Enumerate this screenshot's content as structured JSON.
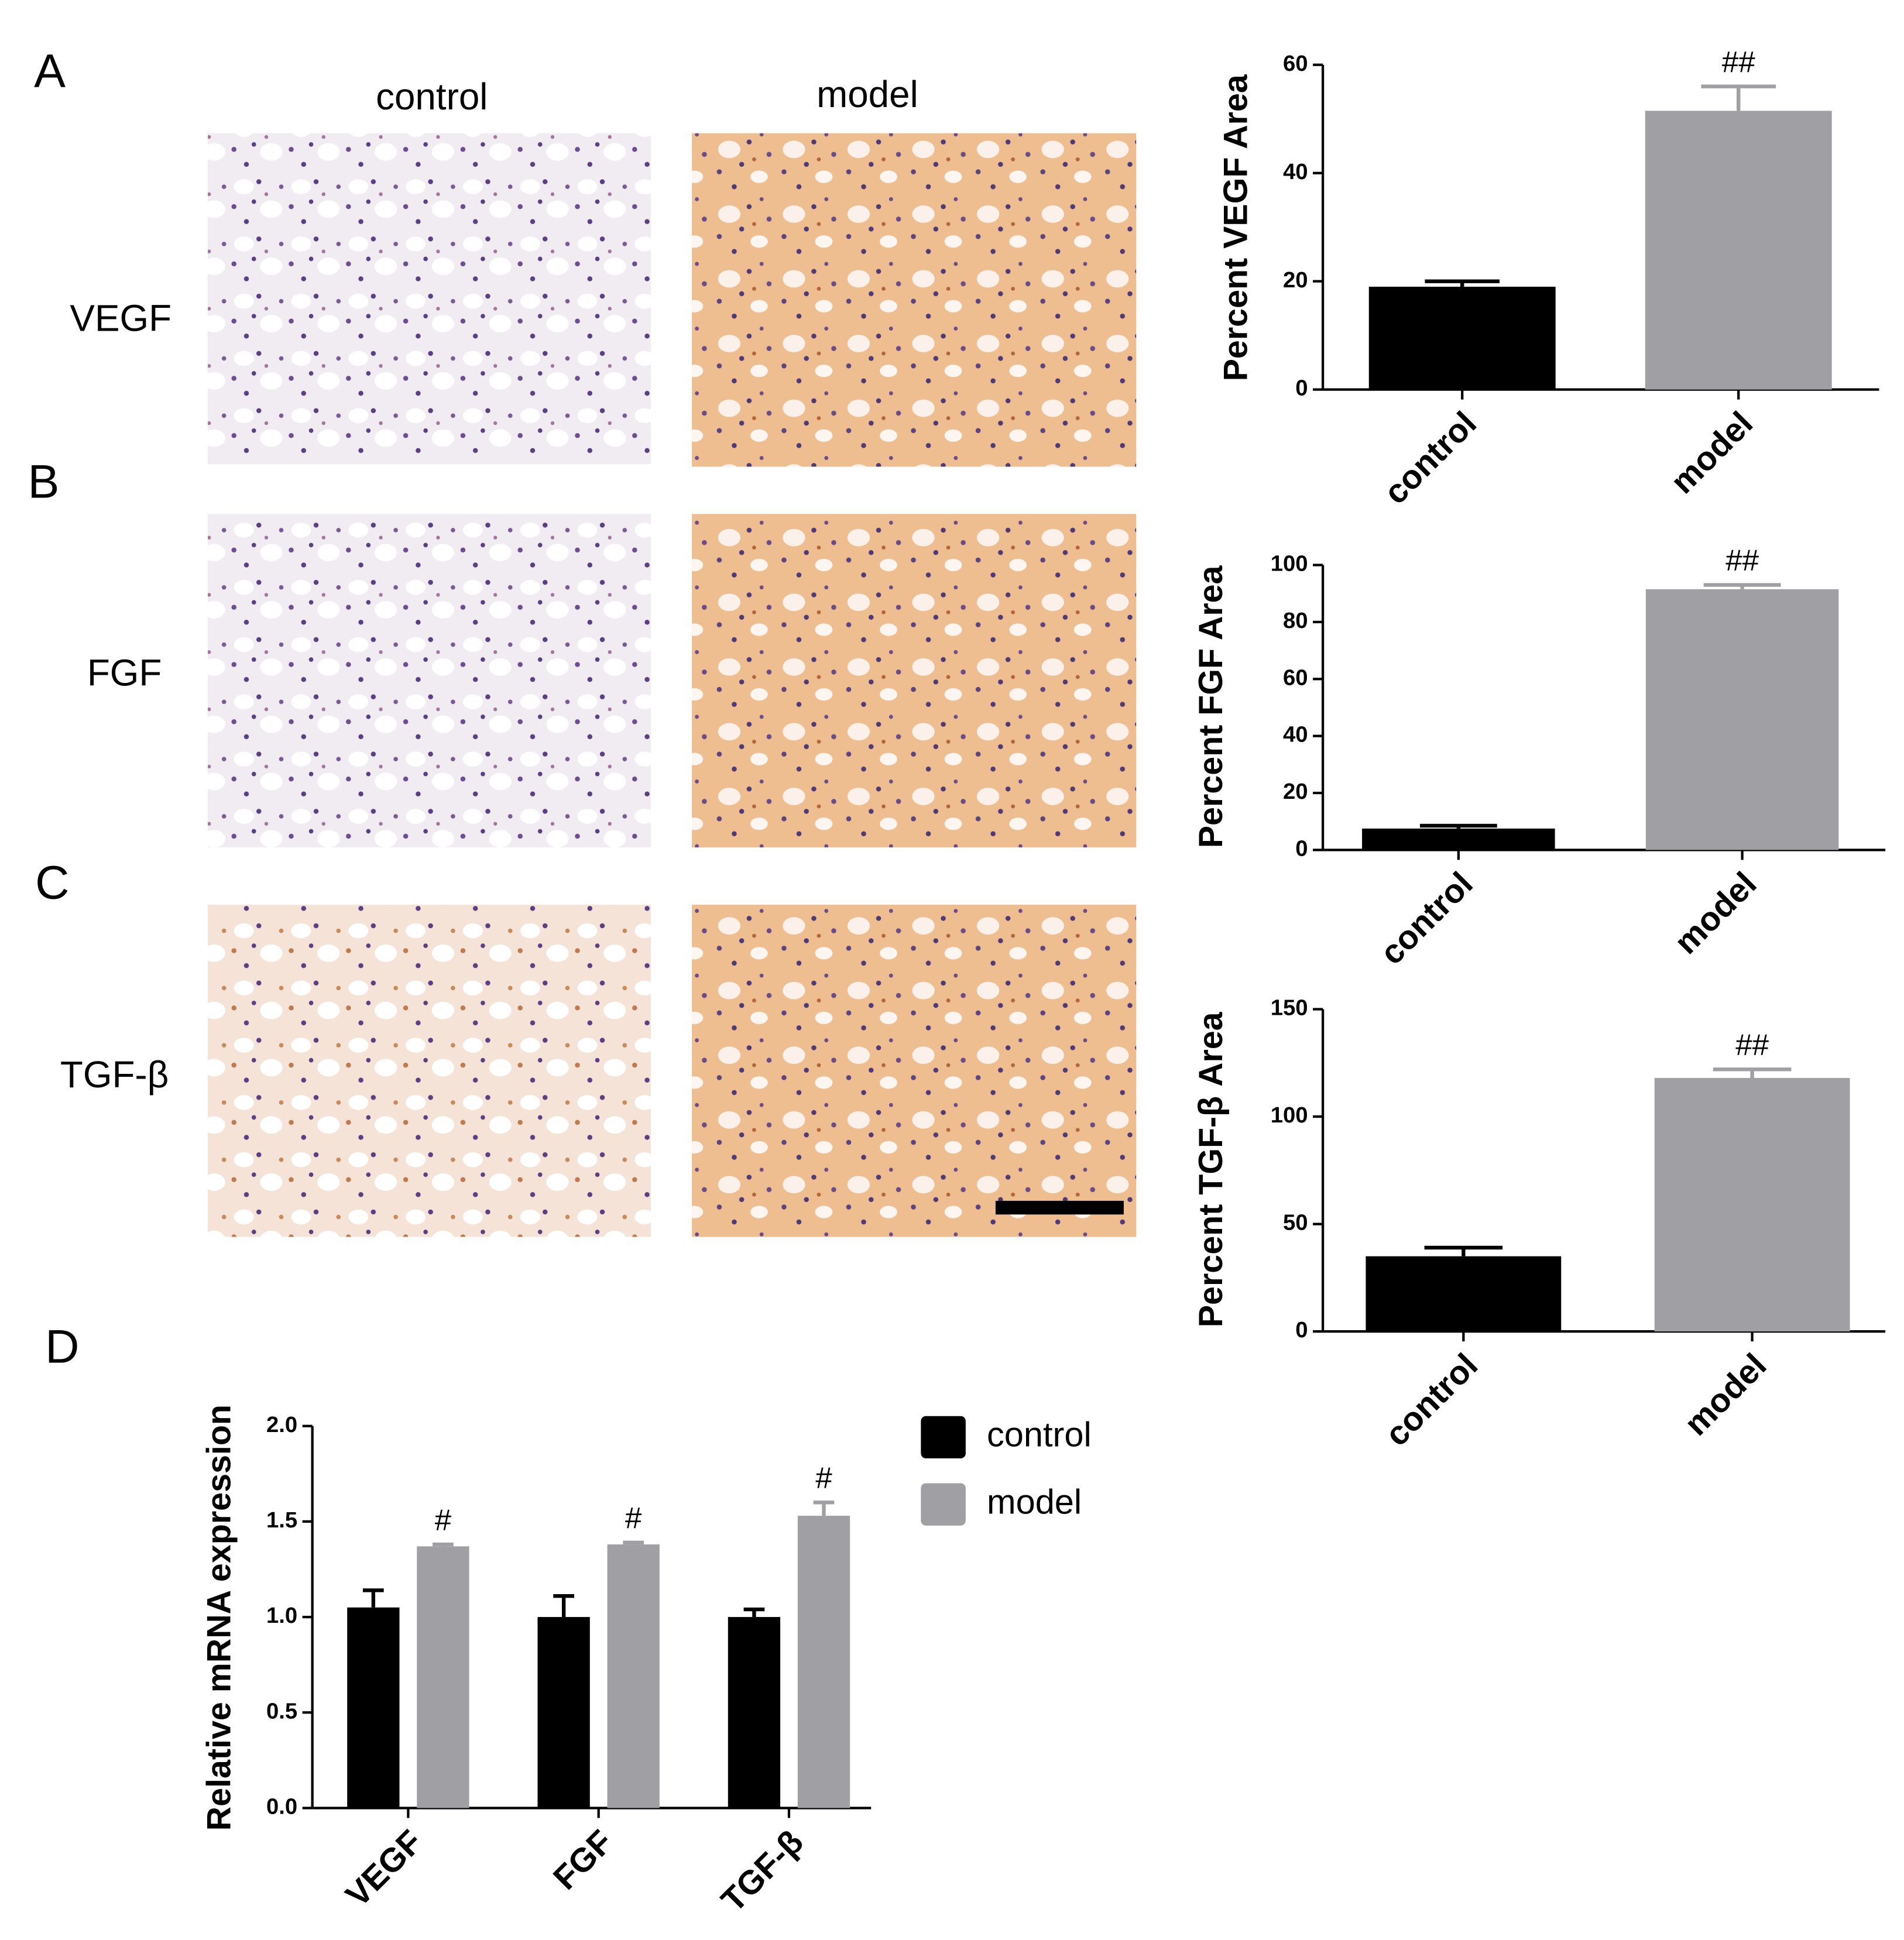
{
  "panel_labels": [
    "A",
    "B",
    "C",
    "D"
  ],
  "columns": [
    "control",
    "model"
  ],
  "rows": [
    "VEGF",
    "FGF",
    "TGF-β"
  ],
  "chart_data": [
    {
      "type": "bar",
      "y_label": "Percent VEGF Area",
      "categories": [
        "control",
        "model"
      ],
      "values": [
        19,
        51.5
      ],
      "errors": [
        1,
        4.5
      ],
      "annotations": [
        null,
        "##"
      ],
      "colors": [
        "#000000",
        "#a0a0a4"
      ],
      "ylim": [
        0,
        60
      ],
      "yticks": [
        0,
        20,
        40,
        60
      ]
    },
    {
      "type": "bar",
      "y_label": "Percent FGF Area",
      "categories": [
        "control",
        "model"
      ],
      "values": [
        7.5,
        91.5
      ],
      "errors": [
        1,
        1.5
      ],
      "annotations": [
        null,
        "##"
      ],
      "colors": [
        "#000000",
        "#a0a0a4"
      ],
      "ylim": [
        0,
        100
      ],
      "yticks": [
        0,
        20,
        40,
        60,
        80,
        100
      ]
    },
    {
      "type": "bar",
      "y_label": "Percent TGF-β Area",
      "categories": [
        "control",
        "model"
      ],
      "values": [
        35,
        118
      ],
      "errors": [
        4,
        4
      ],
      "annotations": [
        null,
        "##"
      ],
      "colors": [
        "#000000",
        "#a0a0a4"
      ],
      "ylim": [
        0,
        150
      ],
      "yticks": [
        0,
        50,
        100,
        150
      ]
    },
    {
      "type": "bar",
      "y_label": "Relative mRNA expression",
      "categories": [
        "VEGF",
        "FGF",
        "TGF-β"
      ],
      "series": [
        {
          "name": "control",
          "color": "#000000",
          "values": [
            1.05,
            1.0,
            1.0
          ],
          "errors": [
            0.09,
            0.11,
            0.04
          ]
        },
        {
          "name": "model",
          "color": "#a0a0a4",
          "values": [
            1.37,
            1.38,
            1.53
          ],
          "errors": [
            0.01,
            0.01,
            0.07
          ],
          "annotations": [
            "#",
            "#",
            "#"
          ]
        }
      ],
      "ylim": [
        0,
        2
      ],
      "yticks": [
        {
          "value": 0,
          "label": "0.0"
        },
        {
          "value": 0.5,
          "label": "0.5"
        },
        {
          "value": 1,
          "label": "1.0"
        },
        {
          "value": 1.5,
          "label": "1.5"
        },
        {
          "value": 2,
          "label": "2.0"
        }
      ],
      "legend": "right"
    }
  ]
}
